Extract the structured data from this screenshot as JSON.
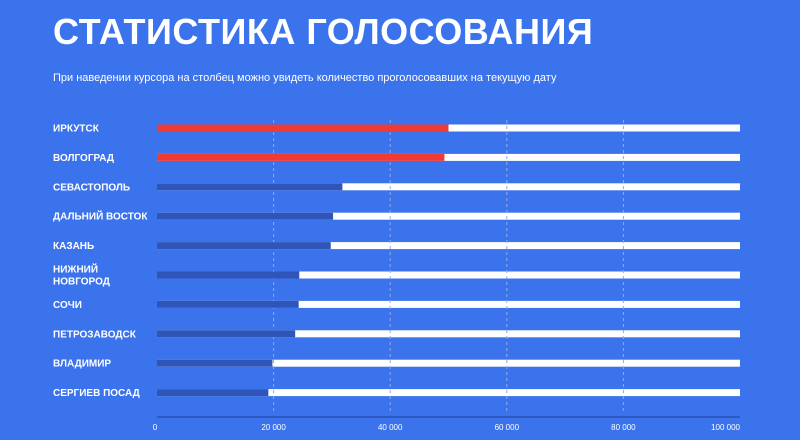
{
  "header": {
    "title": "СТАТИСТИКА ГОЛОСОВАНИЯ",
    "subtitle": "При наведении курсора на столбец можно увидеть количество проголосовавших на текущую дату"
  },
  "colors": {
    "background": "#3b73ed",
    "track": "#ffffff",
    "leader": "#ef3b36",
    "bar": "#2f55b8",
    "grid": "#8fa9e8"
  },
  "chart_data": {
    "type": "bar",
    "orientation": "horizontal",
    "categories": [
      [
        "ИРКУТСК"
      ],
      [
        "ВОЛГОГРАД"
      ],
      [
        "СЕВАСТОПОЛЬ"
      ],
      [
        "ДАЛЬНИЙ ВОСТОК"
      ],
      [
        "КАЗАНЬ"
      ],
      [
        "НИЖНИЙ",
        "НОВГОРОД"
      ],
      [
        "СОЧИ"
      ],
      [
        "ПЕТРОЗАВОДСК"
      ],
      [
        "ВЛАДИМИР"
      ],
      [
        "СЕРГИЕВ ПОСАД"
      ]
    ],
    "values": [
      50000,
      49300,
      31800,
      30200,
      29800,
      24400,
      24300,
      23700,
      19800,
      19100
    ],
    "highlighted": [
      true,
      true,
      false,
      false,
      false,
      false,
      false,
      false,
      false,
      false
    ],
    "xlim": [
      0,
      100000
    ],
    "ticks": [
      0,
      20000,
      40000,
      60000,
      80000,
      100000
    ],
    "tick_labels": [
      "0",
      "20 000",
      "40 000",
      "60 000",
      "80 000",
      "100 000"
    ],
    "grid": true,
    "legend": "none"
  }
}
